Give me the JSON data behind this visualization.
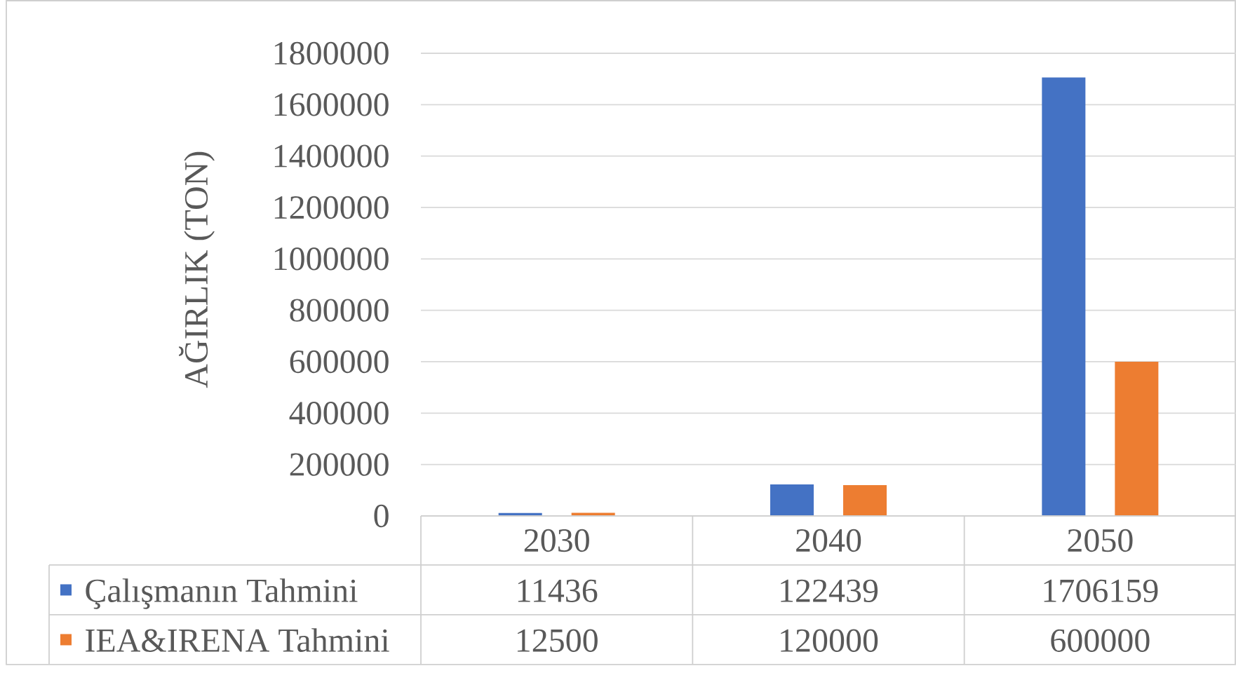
{
  "chart_data": {
    "type": "bar",
    "ylabel": "AĞIRLIK (TON)",
    "categories": [
      "2030",
      "2040",
      "2050"
    ],
    "series": [
      {
        "name": "Çalışmanın Tahmini",
        "color": "#4472c4",
        "values": [
          11436,
          122439,
          1706159
        ]
      },
      {
        "name": "IEA&IRENA Tahmini",
        "color": "#ed7d31",
        "values": [
          12500,
          120000,
          600000
        ]
      }
    ],
    "ylim": [
      0,
      1800000
    ],
    "yticks": [
      0,
      200000,
      400000,
      600000,
      800000,
      1000000,
      1200000,
      1400000,
      1600000,
      1800000
    ],
    "grid": "y",
    "legend": "bottom",
    "data_labels": true
  }
}
